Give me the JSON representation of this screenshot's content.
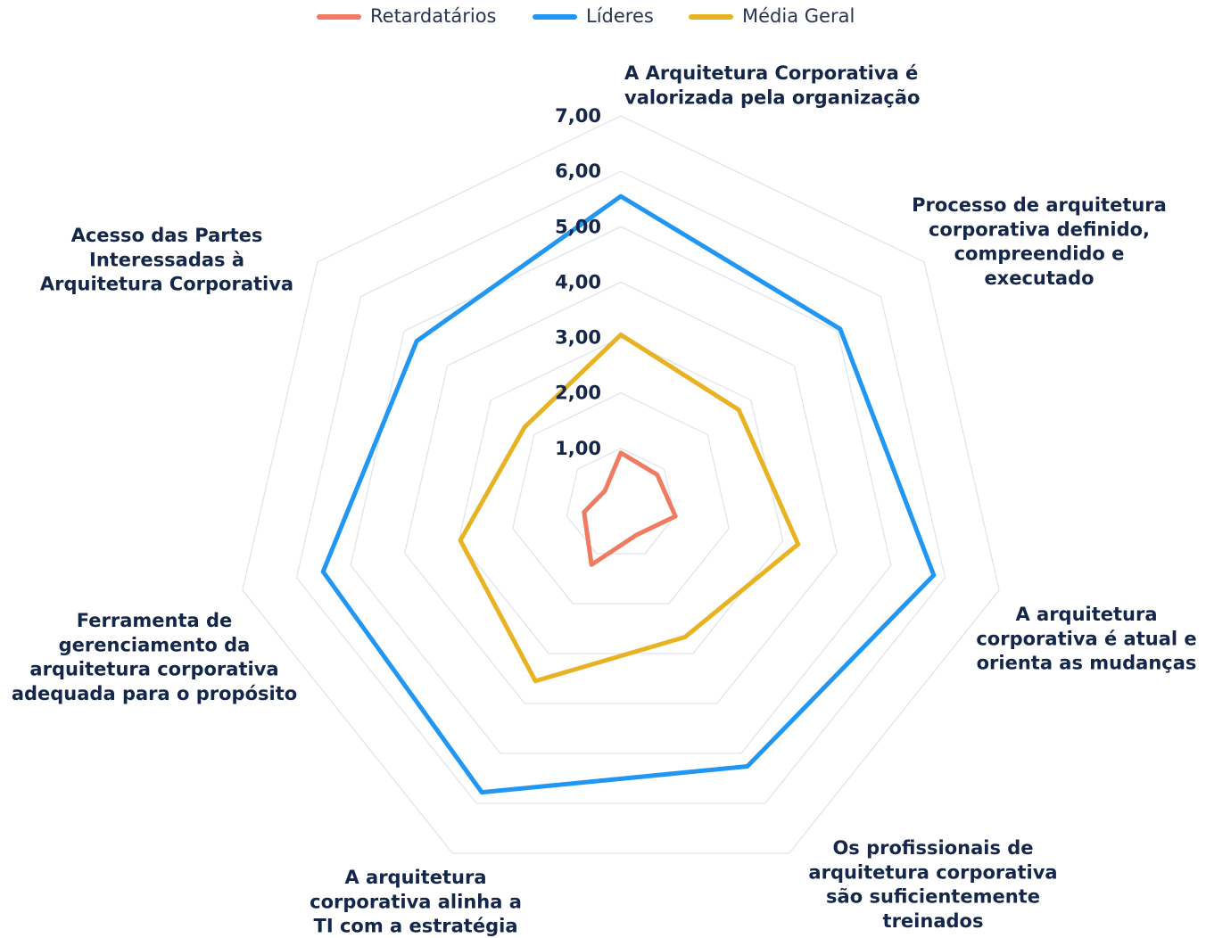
{
  "chart_data": {
    "type": "radar",
    "categories": [
      [
        "A Arquitetura Corporativa é",
        "valorizada pela organização"
      ],
      [
        "Processo de arquitetura",
        "corporativa definido,",
        "compreendido e",
        "executado"
      ],
      [
        "A arquitetura",
        "corporativa é atual e",
        "orienta as mudanças"
      ],
      [
        "Os profissionais de",
        "arquitetura corporativa",
        "são suficientemente",
        "treinados"
      ],
      [
        "A arquitetura",
        "corporativa alinha a",
        "TI com a estratégia"
      ],
      [
        "Ferramenta de",
        "gerenciamento da",
        "arquitetura corporativa",
        "adequada para o propósito"
      ],
      [
        "Acesso das Partes",
        "Interessadas à",
        "Arquitetura Corporativa"
      ]
    ],
    "series": [
      {
        "name": "Retardatários",
        "color": "#f07a62",
        "values": [
          0.92,
          0.84,
          1.01,
          0.63,
          1.22,
          0.68,
          0.37
        ]
      },
      {
        "name": "Líderes",
        "color": "#2196f3",
        "values": [
          5.55,
          5.06,
          5.79,
          5.26,
          5.78,
          5.51,
          4.71
        ]
      },
      {
        "name": "Média Geral",
        "color": "#e8b323",
        "values": [
          3.05,
          2.72,
          3.28,
          2.67,
          3.55,
          2.97,
          2.22
        ]
      }
    ],
    "rlim": [
      0,
      7
    ],
    "rticks": [
      {
        "value": 1,
        "label": "1,00"
      },
      {
        "value": 2,
        "label": "2,00"
      },
      {
        "value": 3,
        "label": "3,00"
      },
      {
        "value": 4,
        "label": "4,00"
      },
      {
        "value": 5,
        "label": "5,00"
      },
      {
        "value": 6,
        "label": "6,00"
      },
      {
        "value": 7,
        "label": "7,00"
      }
    ],
    "grid": true,
    "legend": "top"
  }
}
